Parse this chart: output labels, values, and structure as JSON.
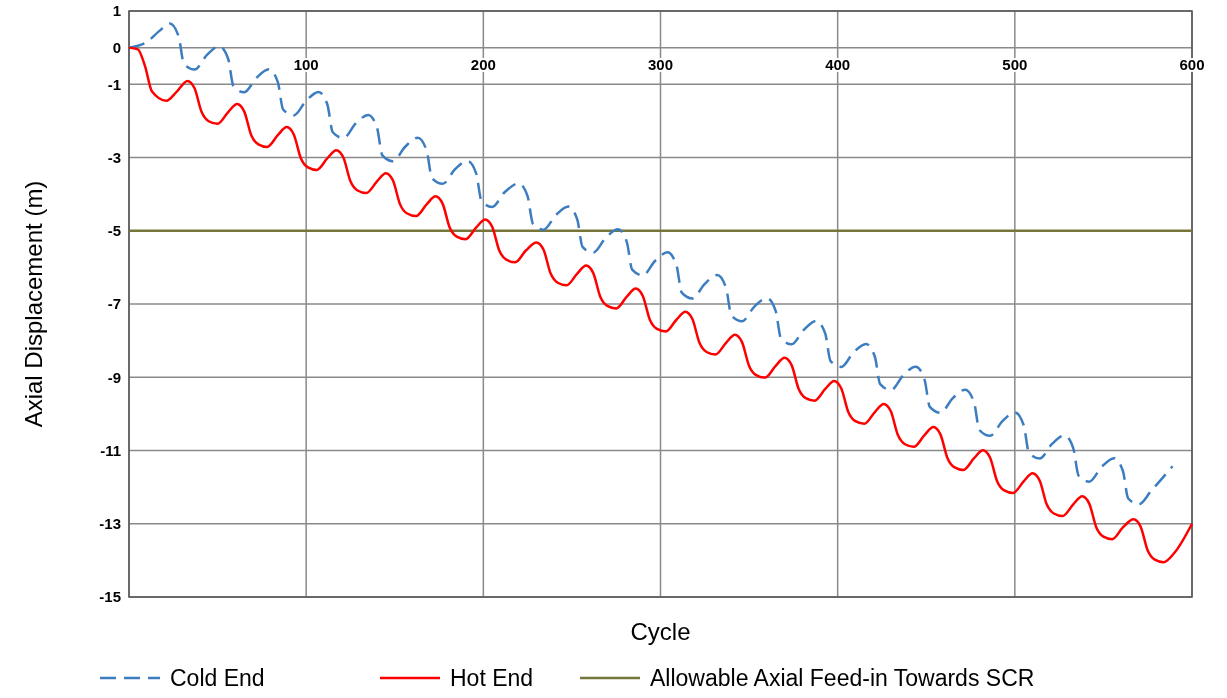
{
  "chart_data": {
    "type": "line",
    "xlabel": "Cycle",
    "ylabel": "Axial Displacement (m)",
    "xlim": [
      0,
      600
    ],
    "xticks": [
      {
        "value": 0,
        "label": null
      },
      100,
      200,
      300,
      400,
      500,
      600
    ],
    "ylim": [
      -15,
      1
    ],
    "yticks": [
      1,
      0,
      -1,
      -3,
      -5,
      -7,
      -9,
      -11,
      -13,
      -15
    ],
    "grid": true,
    "legend": "bottom",
    "marker": "none",
    "ref_lines": [
      {
        "axis": "y",
        "value": -5,
        "label": "Allowable Axial Feed-in Towards SCR",
        "color": "#76763a",
        "line_style": "solid"
      }
    ],
    "series": [
      {
        "name": "Cold End",
        "color": "#3c7dc0",
        "line_style": "dashed",
        "x": [
          0,
          10,
          17,
          23,
          28,
          31,
          37,
          44,
          51,
          56,
          59,
          65,
          72,
          79,
          84,
          87,
          93,
          100,
          107,
          112,
          115,
          121,
          128,
          135,
          140,
          143,
          149,
          156,
          163,
          168,
          171,
          177,
          184,
          191,
          196,
          199,
          205,
          212,
          220,
          225,
          228,
          234,
          241,
          248,
          253,
          256,
          262,
          269,
          276,
          281,
          284,
          290,
          297,
          304,
          309,
          312,
          318,
          325,
          332,
          337,
          340,
          346,
          353,
          360,
          365,
          368,
          374,
          381,
          388,
          393,
          396,
          402,
          409,
          416,
          421,
          424,
          430,
          437,
          444,
          449,
          452,
          458,
          465,
          472,
          477,
          480,
          486,
          493,
          500,
          505,
          508,
          514,
          521,
          528,
          533,
          536,
          542,
          549,
          556,
          561,
          564,
          570,
          577,
          589
        ],
        "values": [
          0,
          0.15,
          0.45,
          0.66,
          0.31,
          -0.44,
          -0.6,
          -0.2,
          0.04,
          -0.31,
          -1.06,
          -1.22,
          -0.82,
          -0.59,
          -0.94,
          -1.69,
          -1.85,
          -1.45,
          -1.21,
          -1.56,
          -2.31,
          -2.47,
          -2.07,
          -1.84,
          -2.19,
          -2.94,
          -3.1,
          -2.7,
          -2.46,
          -2.81,
          -3.56,
          -3.72,
          -3.32,
          -3.09,
          -3.44,
          -4.19,
          -4.35,
          -3.95,
          -3.71,
          -4.06,
          -4.81,
          -4.97,
          -4.57,
          -4.34,
          -4.69,
          -5.44,
          -5.6,
          -5.2,
          -4.96,
          -5.31,
          -6.06,
          -6.22,
          -5.82,
          -5.59,
          -5.94,
          -6.69,
          -6.85,
          -6.45,
          -6.21,
          -6.56,
          -7.31,
          -7.47,
          -7.07,
          -6.84,
          -7.19,
          -7.94,
          -8.1,
          -7.7,
          -7.46,
          -7.81,
          -8.56,
          -8.72,
          -8.32,
          -8.09,
          -8.44,
          -9.19,
          -9.35,
          -8.95,
          -8.71,
          -9.06,
          -9.81,
          -9.97,
          -9.57,
          -9.34,
          -9.69,
          -10.44,
          -10.6,
          -10.2,
          -9.96,
          -10.31,
          -11.06,
          -11.22,
          -10.82,
          -10.59,
          -10.94,
          -11.69,
          -11.85,
          -11.45,
          -11.21,
          -11.56,
          -12.31,
          -12.47,
          -12.1,
          -11.43
        ]
      },
      {
        "name": "Hot End",
        "color": "#ff0000",
        "line_style": "solid",
        "x": [
          0,
          5,
          9,
          13,
          21,
          27,
          33,
          37,
          41,
          45,
          50,
          56,
          61,
          65,
          69,
          73,
          78,
          84,
          89,
          93,
          97,
          101,
          106,
          112,
          117,
          121,
          125,
          129,
          134,
          140,
          145,
          149,
          153,
          157,
          162,
          168,
          173,
          177,
          181,
          185,
          190,
          196,
          201,
          205,
          209,
          213,
          218,
          224,
          230,
          234,
          238,
          242,
          247,
          253,
          258,
          262,
          266,
          270,
          275,
          281,
          286,
          290,
          294,
          298,
          303,
          309,
          314,
          318,
          322,
          326,
          331,
          337,
          342,
          346,
          350,
          354,
          359,
          365,
          370,
          374,
          378,
          382,
          387,
          393,
          398,
          402,
          406,
          410,
          415,
          421,
          426,
          430,
          434,
          438,
          443,
          449,
          454,
          458,
          462,
          466,
          471,
          477,
          482,
          486,
          490,
          494,
          499,
          505,
          510,
          514,
          518,
          522,
          527,
          533,
          538,
          542,
          546,
          550,
          555,
          561,
          567,
          571,
          575,
          579,
          584,
          590,
          600
        ],
        "values": [
          0,
          -0.05,
          -0.5,
          -1.2,
          -1.45,
          -1.2,
          -0.91,
          -1.11,
          -1.76,
          -2.01,
          -2.08,
          -1.76,
          -1.54,
          -1.74,
          -2.39,
          -2.64,
          -2.71,
          -2.39,
          -2.17,
          -2.37,
          -3.02,
          -3.27,
          -3.34,
          -3.02,
          -2.8,
          -3.0,
          -3.65,
          -3.9,
          -3.97,
          -3.65,
          -3.43,
          -3.63,
          -4.28,
          -4.53,
          -4.6,
          -4.28,
          -4.06,
          -4.26,
          -4.91,
          -5.16,
          -5.23,
          -4.91,
          -4.69,
          -4.89,
          -5.54,
          -5.79,
          -5.86,
          -5.54,
          -5.32,
          -5.52,
          -6.17,
          -6.42,
          -6.49,
          -6.17,
          -5.95,
          -6.15,
          -6.8,
          -7.05,
          -7.12,
          -6.8,
          -6.58,
          -6.78,
          -7.43,
          -7.68,
          -7.75,
          -7.43,
          -7.21,
          -7.41,
          -8.06,
          -8.31,
          -8.38,
          -8.06,
          -7.84,
          -8.04,
          -8.69,
          -8.94,
          -9.01,
          -8.69,
          -8.47,
          -8.67,
          -9.32,
          -9.57,
          -9.64,
          -9.32,
          -9.1,
          -9.3,
          -9.95,
          -10.2,
          -10.27,
          -9.95,
          -9.73,
          -9.93,
          -10.58,
          -10.83,
          -10.9,
          -10.58,
          -10.36,
          -10.56,
          -11.21,
          -11.46,
          -11.53,
          -11.21,
          -10.99,
          -11.19,
          -11.84,
          -12.09,
          -12.16,
          -11.84,
          -11.62,
          -11.82,
          -12.47,
          -12.72,
          -12.79,
          -12.47,
          -12.25,
          -12.45,
          -13.1,
          -13.35,
          -13.42,
          -13.1,
          -12.88,
          -13.08,
          -13.73,
          -13.98,
          -14.05,
          -13.8,
          -13.0
        ]
      }
    ]
  }
}
